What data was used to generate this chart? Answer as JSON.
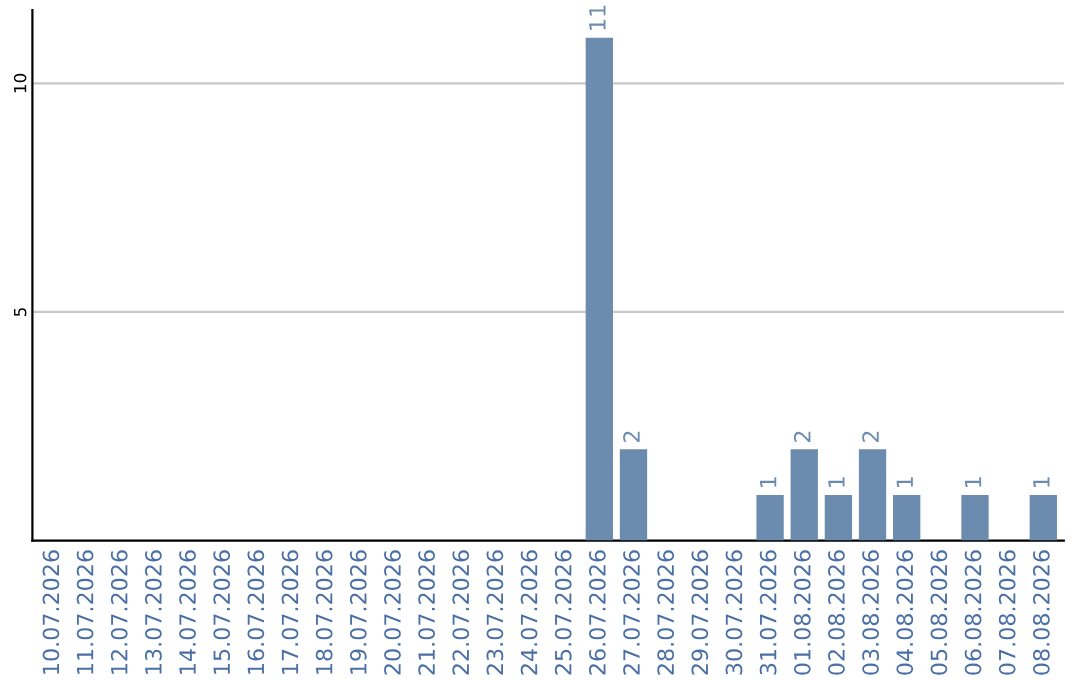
{
  "chart_data": {
    "type": "bar",
    "categories": [
      "10.07.2026",
      "11.07.2026",
      "12.07.2026",
      "13.07.2026",
      "14.07.2026",
      "15.07.2026",
      "16.07.2026",
      "17.07.2026",
      "18.07.2026",
      "19.07.2026",
      "20.07.2026",
      "21.07.2026",
      "22.07.2026",
      "23.07.2026",
      "24.07.2026",
      "25.07.2026",
      "26.07.2026",
      "27.07.2026",
      "28.07.2026",
      "29.07.2026",
      "30.07.2026",
      "31.07.2026",
      "01.08.2026",
      "02.08.2026",
      "03.08.2026",
      "04.08.2026",
      "05.08.2026",
      "06.08.2026",
      "07.08.2026",
      "08.08.2026"
    ],
    "values": [
      0,
      0,
      0,
      0,
      0,
      0,
      0,
      0,
      0,
      0,
      0,
      0,
      0,
      0,
      0,
      0,
      11,
      2,
      0,
      0,
      0,
      1,
      2,
      1,
      2,
      1,
      0,
      1,
      0,
      1
    ],
    "value_labels": [
      null,
      null,
      null,
      null,
      null,
      null,
      null,
      null,
      null,
      null,
      null,
      null,
      null,
      null,
      null,
      null,
      "11",
      "2",
      null,
      null,
      null,
      "1",
      "2",
      "1",
      "2",
      "1",
      null,
      "1",
      null,
      "1"
    ],
    "color": "#6b8cae",
    "ylim": [
      0,
      11.6
    ],
    "yticks": [
      5,
      10
    ],
    "grid": "y"
  }
}
